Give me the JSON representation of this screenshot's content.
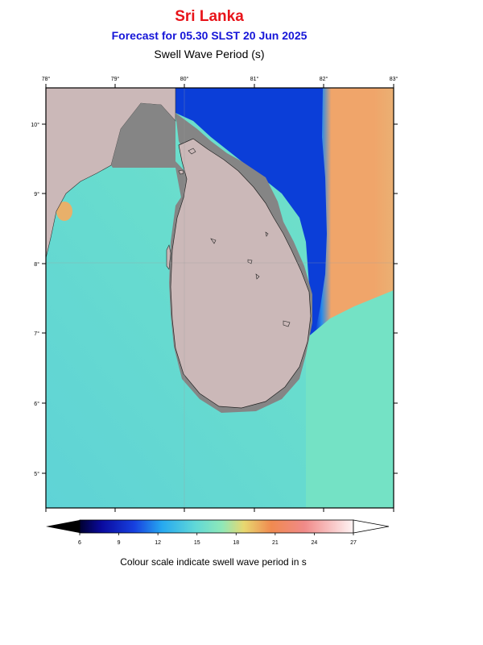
{
  "header": {
    "country": "Sri Lanka",
    "forecast": "Forecast for  05.30 SLST 20 Jun 2025",
    "parameter": "Swell Wave Period (s)"
  },
  "map": {
    "lon_ticks": [
      "78°",
      "79°",
      "80°",
      "81°",
      "82°",
      "83°"
    ],
    "lat_ticks": [
      "10°",
      "9°",
      "8°",
      "7°",
      "6°",
      "5°"
    ],
    "colors": {
      "land": "#cbb8b8",
      "land_masked": "#858585",
      "short_period": "#0b3ed8",
      "mid_period": "#6be0c8",
      "long_period": "#f0a56a"
    }
  },
  "colorbar": {
    "ticks": [
      "6",
      "9",
      "12",
      "15",
      "18",
      "21",
      "24",
      "27"
    ],
    "min": 6,
    "max": 27,
    "note": "Colour scale indicate swell wave period in s"
  }
}
